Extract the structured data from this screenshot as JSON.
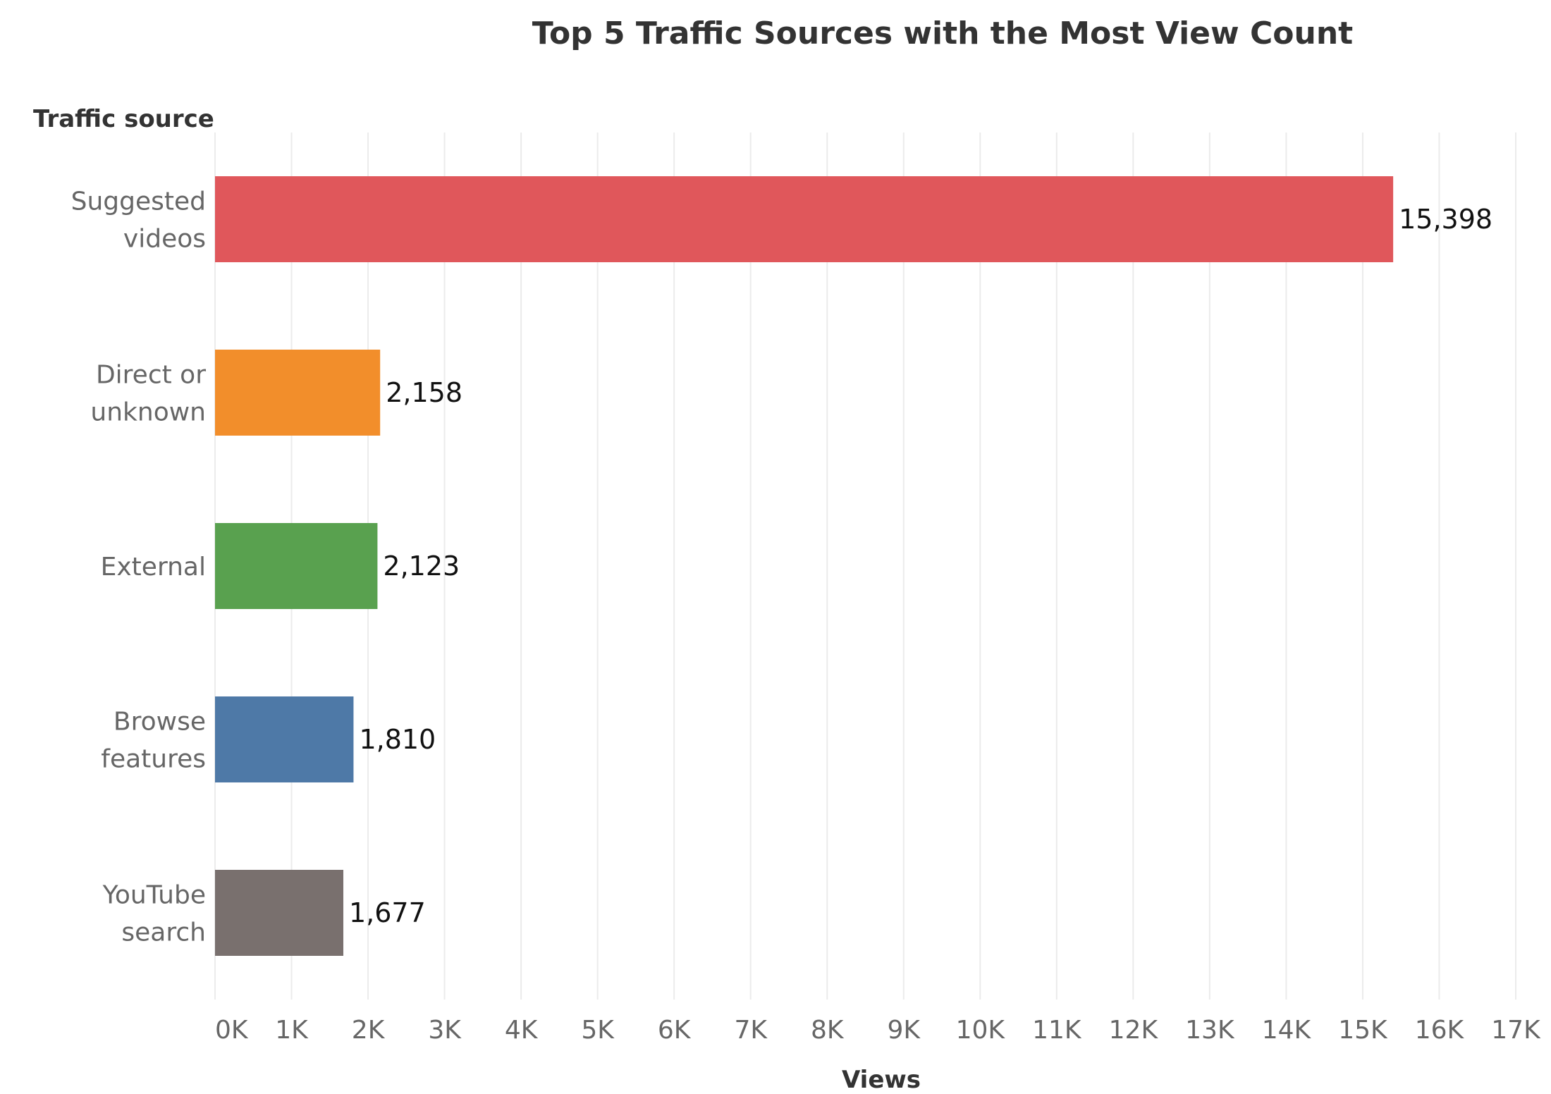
{
  "chart_data": {
    "type": "bar",
    "orientation": "horizontal",
    "title": "Top 5 Traffic Sources with the Most View Count",
    "ylabel": "Traffic source",
    "xlabel": "Views",
    "categories": [
      [
        "Suggested",
        "videos"
      ],
      [
        "Direct or",
        "unknown"
      ],
      [
        "External"
      ],
      [
        "Browse",
        "features"
      ],
      [
        "YouTube",
        "search"
      ]
    ],
    "values": [
      15398,
      2158,
      2123,
      1810,
      1677
    ],
    "data_labels": [
      "15,398",
      "2,158",
      "2,123",
      "1,810",
      "1,677"
    ],
    "colors": [
      "#e0575b",
      "#f28e2b",
      "#59a14f",
      "#4e79a7",
      "#79706e"
    ],
    "xlim": [
      0,
      17000
    ],
    "ticks": [
      0,
      1000,
      2000,
      3000,
      4000,
      5000,
      6000,
      7000,
      8000,
      9000,
      10000,
      11000,
      12000,
      13000,
      14000,
      15000,
      16000,
      17000
    ],
    "tick_labels": [
      "0K",
      "1K",
      "2K",
      "3K",
      "4K",
      "5K",
      "6K",
      "7K",
      "8K",
      "9K",
      "10K",
      "11K",
      "12K",
      "13K",
      "14K",
      "15K",
      "16K",
      "17K"
    ],
    "grid": true,
    "legend": "none"
  }
}
